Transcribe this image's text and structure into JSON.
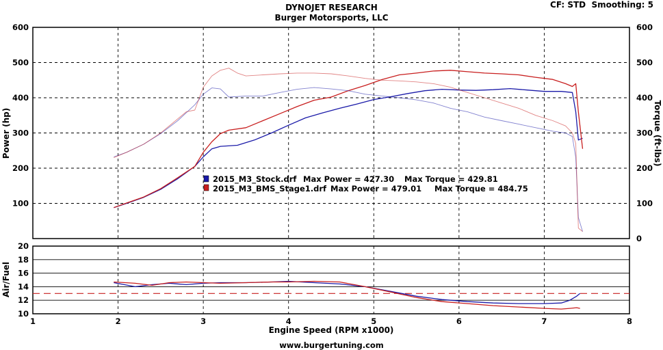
{
  "header": {
    "title": "DYNOJET RESEARCH",
    "subtitle": "Burger Motorsports, LLC",
    "cf_label": "CF: STD",
    "smoothing_label": "Smoothing: 5"
  },
  "footer": {
    "url": "www.burgertuning.com"
  },
  "colors": {
    "stock": "#1a1aa8",
    "stage1": "#c81e1e",
    "grid": "#000000",
    "target_line": "#c81e1e"
  },
  "chart_data": [
    {
      "type": "line",
      "title": "",
      "xlabel": "",
      "ylabel": "Power (hp)",
      "ylabel_right": "Torque (ft-lbs)",
      "xlim": [
        1,
        8
      ],
      "ylim": [
        0,
        600
      ],
      "ylim_right": [
        0,
        600
      ],
      "xticks": [
        1,
        2,
        3,
        4,
        5,
        6,
        7,
        8
      ],
      "yticks": [
        100,
        200,
        300,
        400,
        500,
        600
      ],
      "yticks_right": [
        0,
        100,
        200,
        300,
        400,
        500,
        600
      ],
      "grid": true,
      "legend": [
        {
          "name": "2015_M3_Stock.drf",
          "max_power_label": "Max Power = 427.30",
          "max_torque_label": "Max Torque = 429.81",
          "color": "#1a1aa8"
        },
        {
          "name": "2015_M3_BMS_Stage1.drf",
          "max_power_label": "Max Power = 479.01",
          "max_torque_label": "Max Torque = 484.75",
          "color": "#c81e1e"
        }
      ],
      "legend_placement": "center-left",
      "series": [
        {
          "key": "stock_power",
          "color": "#1a1aa8",
          "style": "dark",
          "x": [
            1.95,
            2.1,
            2.3,
            2.5,
            2.7,
            2.9,
            3.0,
            3.1,
            3.2,
            3.4,
            3.6,
            3.8,
            4.0,
            4.2,
            4.4,
            4.6,
            4.8,
            5.0,
            5.2,
            5.4,
            5.6,
            5.8,
            6.0,
            6.2,
            6.4,
            6.6,
            6.8,
            7.0,
            7.2,
            7.33,
            7.37,
            7.4,
            7.45
          ],
          "y": [
            88,
            100,
            117,
            140,
            170,
            205,
            232,
            255,
            262,
            265,
            280,
            300,
            322,
            343,
            357,
            370,
            382,
            395,
            403,
            412,
            420,
            424,
            422,
            421,
            423,
            426,
            422,
            418,
            418,
            415,
            360,
            280,
            285
          ]
        },
        {
          "key": "stage1_power",
          "color": "#c81e1e",
          "style": "dark",
          "x": [
            1.95,
            2.1,
            2.3,
            2.5,
            2.7,
            2.9,
            3.0,
            3.1,
            3.2,
            3.3,
            3.5,
            3.7,
            3.9,
            4.1,
            4.3,
            4.5,
            4.7,
            4.9,
            5.1,
            5.3,
            5.5,
            5.7,
            5.9,
            6.1,
            6.3,
            6.5,
            6.7,
            6.9,
            7.1,
            7.25,
            7.33,
            7.37,
            7.4,
            7.45
          ],
          "y": [
            88,
            101,
            118,
            142,
            173,
            205,
            245,
            275,
            298,
            308,
            315,
            335,
            355,
            375,
            393,
            402,
            420,
            435,
            452,
            465,
            470,
            476,
            478,
            474,
            470,
            468,
            465,
            458,
            452,
            440,
            432,
            440,
            360,
            255
          ]
        },
        {
          "key": "stock_torque",
          "color": "#1a1aa8",
          "style": "light",
          "x": [
            1.95,
            2.1,
            2.3,
            2.5,
            2.7,
            2.9,
            3.0,
            3.1,
            3.2,
            3.3,
            3.5,
            3.7,
            3.9,
            4.1,
            4.3,
            4.5,
            4.7,
            4.9,
            5.1,
            5.3,
            5.5,
            5.7,
            5.9,
            6.1,
            6.3,
            6.5,
            6.7,
            6.9,
            7.1,
            7.25,
            7.33,
            7.37,
            7.4,
            7.45
          ],
          "y": [
            232,
            245,
            268,
            298,
            335,
            380,
            410,
            428,
            425,
            402,
            405,
            405,
            415,
            424,
            429,
            425,
            420,
            410,
            405,
            400,
            394,
            385,
            370,
            360,
            345,
            335,
            325,
            315,
            305,
            300,
            290,
            230,
            60,
            20
          ]
        },
        {
          "key": "stage1_torque",
          "color": "#c81e1e",
          "style": "light",
          "x": [
            1.95,
            2.1,
            2.3,
            2.5,
            2.7,
            2.8,
            2.9,
            3.0,
            3.1,
            3.2,
            3.3,
            3.4,
            3.5,
            3.7,
            3.9,
            4.1,
            4.3,
            4.5,
            4.7,
            4.9,
            5.1,
            5.3,
            5.5,
            5.7,
            5.9,
            6.1,
            6.3,
            6.5,
            6.7,
            6.9,
            7.1,
            7.25,
            7.33,
            7.37,
            7.4,
            7.45
          ],
          "y": [
            230,
            245,
            268,
            300,
            340,
            360,
            365,
            430,
            462,
            478,
            484,
            470,
            462,
            465,
            468,
            470,
            470,
            468,
            462,
            455,
            450,
            448,
            445,
            440,
            430,
            415,
            400,
            385,
            370,
            350,
            335,
            320,
            300,
            270,
            30,
            20
          ]
        }
      ]
    },
    {
      "type": "line",
      "title": "",
      "xlabel": "Engine Speed (RPM x1000)",
      "ylabel": "Air/Fuel",
      "xlim": [
        1,
        8
      ],
      "ylim": [
        10,
        20
      ],
      "xticks": [
        1,
        2,
        3,
        4,
        5,
        6,
        7,
        8
      ],
      "yticks": [
        10,
        12,
        14,
        16,
        18,
        20
      ],
      "grid": true,
      "target_value": 13,
      "series": [
        {
          "key": "stock_afr",
          "color": "#1a1aa8",
          "x": [
            1.95,
            2.2,
            2.4,
            2.6,
            2.8,
            3.0,
            3.2,
            3.5,
            3.8,
            4.0,
            4.3,
            4.6,
            4.9,
            5.2,
            5.5,
            5.8,
            6.1,
            6.4,
            6.7,
            7.0,
            7.2,
            7.3,
            7.38,
            7.42
          ],
          "y": [
            14.6,
            14.0,
            14.3,
            14.5,
            14.3,
            14.5,
            14.6,
            14.6,
            14.7,
            14.8,
            14.6,
            14.4,
            14.0,
            13.3,
            12.6,
            12.1,
            11.8,
            11.6,
            11.5,
            11.5,
            11.6,
            12.0,
            12.6,
            13.0
          ]
        },
        {
          "key": "stage1_afr",
          "color": "#c81e1e",
          "x": [
            1.95,
            2.2,
            2.4,
            2.6,
            2.8,
            3.0,
            3.2,
            3.5,
            3.8,
            4.0,
            4.3,
            4.6,
            4.9,
            5.2,
            5.5,
            5.8,
            6.1,
            6.4,
            6.7,
            7.0,
            7.2,
            7.3,
            7.38,
            7.42
          ],
          "y": [
            14.7,
            14.5,
            14.2,
            14.6,
            14.7,
            14.6,
            14.5,
            14.6,
            14.7,
            14.7,
            14.8,
            14.7,
            14.0,
            13.2,
            12.4,
            11.8,
            11.5,
            11.2,
            11.0,
            10.8,
            10.7,
            10.8,
            10.9,
            10.8
          ]
        }
      ]
    }
  ]
}
